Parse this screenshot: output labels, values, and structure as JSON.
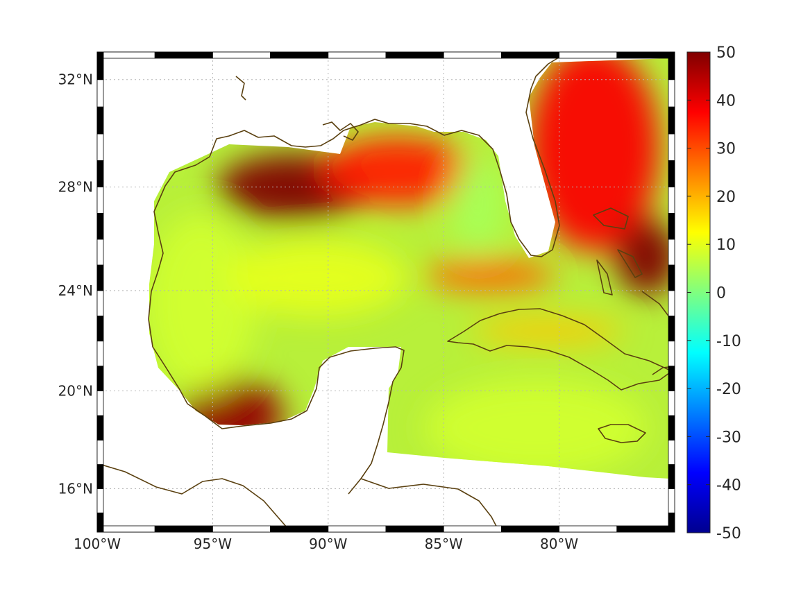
{
  "map": {
    "projection": "mercator",
    "lon_range": [
      -100,
      -75
    ],
    "lat_range": [
      14.2,
      33
    ],
    "grid": true,
    "frame_style": "alternating black and white border bands",
    "lat_ticks": [
      {
        "value": 16,
        "label": "16°N"
      },
      {
        "value": 20,
        "label": "20°N"
      },
      {
        "value": 24,
        "label": "24°N"
      },
      {
        "value": 28,
        "label": "28°N"
      },
      {
        "value": 32,
        "label": "32°N"
      }
    ],
    "lon_ticks": [
      {
        "value": -100,
        "label": "100°W"
      },
      {
        "value": -95,
        "label": "95°W"
      },
      {
        "value": -90,
        "label": "90°W"
      },
      {
        "value": -85,
        "label": "85°W"
      },
      {
        "value": -80,
        "label": "80°W"
      }
    ],
    "coastline_color": "#5a4010",
    "background_field_color": "#b8f03a"
  },
  "colorbar": {
    "colormap": "jet",
    "min": -50,
    "max": 50,
    "ticks": [
      {
        "value": 50,
        "label": "50"
      },
      {
        "value": 40,
        "label": "40"
      },
      {
        "value": 30,
        "label": "30"
      },
      {
        "value": 20,
        "label": "20"
      },
      {
        "value": 10,
        "label": "10"
      },
      {
        "value": 0,
        "label": "0"
      },
      {
        "value": -10,
        "label": "-10"
      },
      {
        "value": -20,
        "label": "-20"
      },
      {
        "value": -30,
        "label": "-30"
      },
      {
        "value": -40,
        "label": "-40"
      },
      {
        "value": -50,
        "label": "-50"
      }
    ]
  },
  "field_regions": [
    {
      "name": "northern-gulf-shelf",
      "lon": -91.5,
      "lat": 28.0,
      "value": 50
    },
    {
      "name": "northeast-gulf",
      "lon": -87.0,
      "lat": 28.6,
      "value": 35
    },
    {
      "name": "florida-straits",
      "lon": -83.0,
      "lat": 24.6,
      "value": 28
    },
    {
      "name": "atlantic-gulf-stream",
      "lon": -78.5,
      "lat": 29.5,
      "value": 38
    },
    {
      "name": "bahamas",
      "lon": -76.2,
      "lat": 25.3,
      "value": 50
    },
    {
      "name": "bay-of-campeche",
      "lon": -94.2,
      "lat": 19.0,
      "value": 48
    },
    {
      "name": "west-gulf",
      "lon": -95.5,
      "lat": 23.5,
      "value": 8
    },
    {
      "name": "central-gulf",
      "lon": -90.5,
      "lat": 24.5,
      "value": 10
    },
    {
      "name": "caribbean",
      "lon": -81.0,
      "lat": 18.5,
      "value": 8
    },
    {
      "name": "cuba-north",
      "lon": -80.5,
      "lat": 22.4,
      "value": 18
    },
    {
      "name": "west-florida-shelf",
      "lon": -83.5,
      "lat": 27.3,
      "value": 4
    }
  ]
}
